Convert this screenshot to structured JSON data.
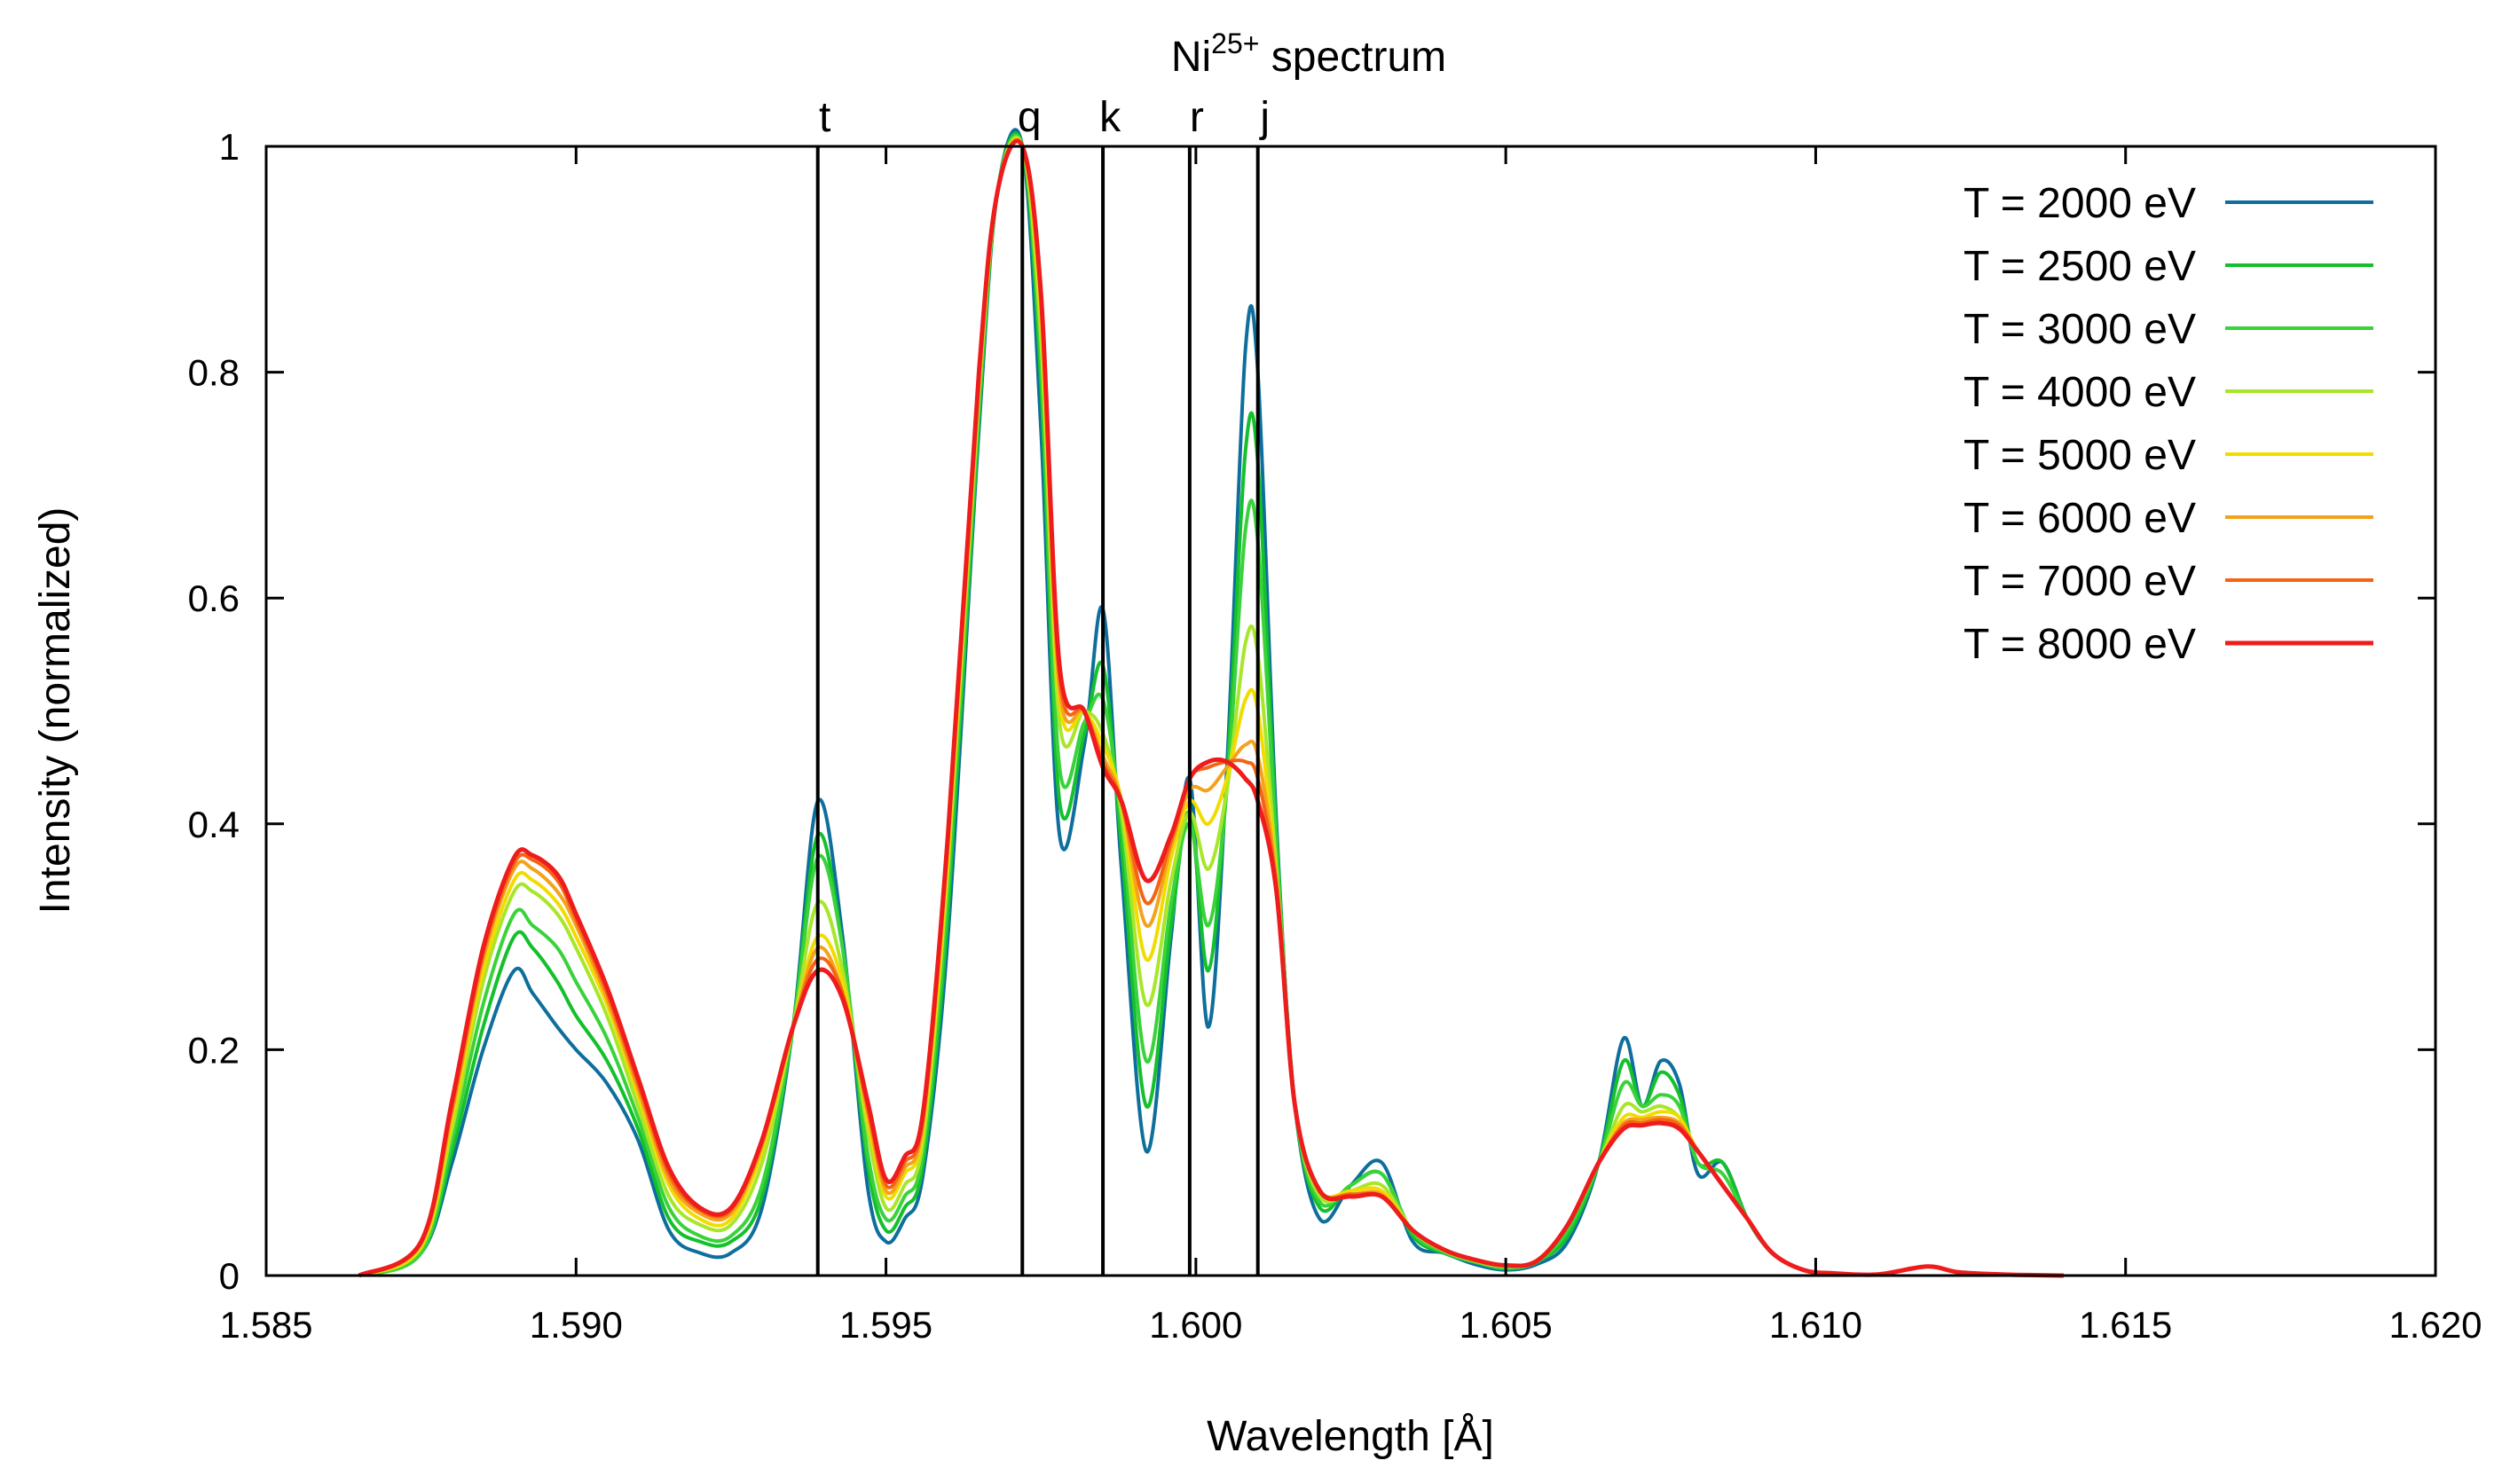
{
  "chart_data": {
    "type": "line",
    "title": "Ni",
    "title_superscript": "25+",
    "title_rest": " spectrum",
    "xlabel": "Wavelength [Å]",
    "ylabel": "Intensity (normalized)",
    "xlim": [
      1.585,
      1.62
    ],
    "ylim": [
      0,
      1
    ],
    "xticks": [
      1.585,
      1.59,
      1.595,
      1.6,
      1.605,
      1.61,
      1.615,
      1.62
    ],
    "xtick_labels": [
      "1.585",
      "1.590",
      "1.595",
      "1.600",
      "1.605",
      "1.610",
      "1.615",
      "1.620"
    ],
    "yticks": [
      0,
      0.2,
      0.4,
      0.6,
      0.8,
      1
    ],
    "ytick_labels": [
      "0",
      "0.2",
      "0.4",
      "0.6",
      "0.8",
      "1"
    ],
    "grid": false,
    "legend_position": "top-right",
    "line_markers": [
      {
        "label": "t",
        "x": 1.5939
      },
      {
        "label": "q",
        "x": 1.5972
      },
      {
        "label": "k",
        "x": 1.5985
      },
      {
        "label": "r",
        "x": 1.5999
      },
      {
        "label": "j",
        "x": 1.601
      }
    ],
    "x": [
      1.5865,
      1.5875,
      1.588,
      1.5885,
      1.589,
      1.5893,
      1.5897,
      1.59,
      1.5905,
      1.591,
      1.5915,
      1.592,
      1.5925,
      1.593,
      1.5935,
      1.5939,
      1.5943,
      1.5947,
      1.595,
      1.5953,
      1.5956,
      1.596,
      1.5965,
      1.5968,
      1.5972,
      1.5975,
      1.5978,
      1.5982,
      1.5985,
      1.5988,
      1.5992,
      1.5996,
      1.5999,
      1.6002,
      1.6005,
      1.6008,
      1.601,
      1.6013,
      1.6016,
      1.602,
      1.6025,
      1.603,
      1.6035,
      1.604,
      1.6045,
      1.605,
      1.6055,
      1.606,
      1.6065,
      1.6069,
      1.6072,
      1.6075,
      1.6078,
      1.6081,
      1.6085,
      1.6089,
      1.6093,
      1.6098,
      1.6103,
      1.611,
      1.6118,
      1.6123,
      1.613,
      1.614
    ],
    "series": [
      {
        "name": "T = 2000 eV",
        "color": "#0e6e9c",
        "values": [
          0.0,
          0.02,
          0.1,
          0.2,
          0.27,
          0.25,
          0.22,
          0.2,
          0.17,
          0.12,
          0.04,
          0.02,
          0.02,
          0.06,
          0.22,
          0.42,
          0.3,
          0.08,
          0.03,
          0.05,
          0.09,
          0.3,
          0.75,
          0.96,
          1.0,
          0.75,
          0.39,
          0.47,
          0.59,
          0.36,
          0.11,
          0.3,
          0.44,
          0.22,
          0.45,
          0.82,
          0.8,
          0.4,
          0.15,
          0.05,
          0.08,
          0.1,
          0.03,
          0.02,
          0.01,
          0.005,
          0.01,
          0.03,
          0.1,
          0.21,
          0.15,
          0.19,
          0.17,
          0.09,
          0.1,
          0.05,
          0.02,
          0.005,
          0.002,
          0.001,
          0.008,
          0.003,
          0.001,
          0.0
        ]
      },
      {
        "name": "T = 2500 eV",
        "color": "#14c02c",
        "values": [
          0.0,
          0.02,
          0.11,
          0.22,
          0.3,
          0.29,
          0.26,
          0.23,
          0.19,
          0.13,
          0.05,
          0.03,
          0.03,
          0.07,
          0.22,
          0.39,
          0.29,
          0.1,
          0.04,
          0.06,
          0.1,
          0.32,
          0.76,
          0.96,
          1.0,
          0.79,
          0.42,
          0.48,
          0.54,
          0.38,
          0.15,
          0.31,
          0.41,
          0.27,
          0.44,
          0.73,
          0.72,
          0.39,
          0.15,
          0.06,
          0.08,
          0.09,
          0.035,
          0.02,
          0.012,
          0.006,
          0.012,
          0.035,
          0.1,
          0.19,
          0.15,
          0.18,
          0.16,
          0.1,
          0.1,
          0.05,
          0.02,
          0.005,
          0.002,
          0.001,
          0.008,
          0.003,
          0.001,
          0.0
        ]
      },
      {
        "name": "T = 3000 eV",
        "color": "#3ad23a",
        "values": [
          0.0,
          0.02,
          0.12,
          0.24,
          0.32,
          0.31,
          0.29,
          0.26,
          0.21,
          0.14,
          0.06,
          0.035,
          0.035,
          0.08,
          0.22,
          0.37,
          0.29,
          0.11,
          0.05,
          0.07,
          0.11,
          0.34,
          0.77,
          0.96,
          1.0,
          0.81,
          0.45,
          0.49,
          0.51,
          0.4,
          0.19,
          0.33,
          0.4,
          0.31,
          0.43,
          0.66,
          0.65,
          0.38,
          0.15,
          0.065,
          0.08,
          0.09,
          0.038,
          0.021,
          0.012,
          0.007,
          0.012,
          0.04,
          0.1,
          0.17,
          0.15,
          0.16,
          0.15,
          0.1,
          0.09,
          0.05,
          0.02,
          0.005,
          0.002,
          0.001,
          0.008,
          0.003,
          0.001,
          0.0
        ]
      },
      {
        "name": "T = 4000 eV",
        "color": "#a8e62a",
        "values": [
          0.0,
          0.025,
          0.13,
          0.26,
          0.34,
          0.34,
          0.32,
          0.29,
          0.23,
          0.15,
          0.07,
          0.045,
          0.045,
          0.1,
          0.22,
          0.33,
          0.27,
          0.13,
          0.06,
          0.08,
          0.12,
          0.36,
          0.78,
          0.96,
          1.0,
          0.83,
          0.49,
          0.5,
          0.48,
          0.41,
          0.24,
          0.35,
          0.41,
          0.36,
          0.43,
          0.56,
          0.55,
          0.36,
          0.15,
          0.07,
          0.075,
          0.08,
          0.04,
          0.022,
          0.013,
          0.008,
          0.013,
          0.045,
          0.1,
          0.15,
          0.145,
          0.15,
          0.14,
          0.11,
          0.08,
          0.05,
          0.02,
          0.005,
          0.002,
          0.001,
          0.008,
          0.003,
          0.001,
          0.0
        ]
      },
      {
        "name": "T = 5000 eV",
        "color": "#f2dc00",
        "values": [
          0.0,
          0.025,
          0.14,
          0.27,
          0.35,
          0.35,
          0.33,
          0.3,
          0.24,
          0.16,
          0.08,
          0.05,
          0.05,
          0.11,
          0.22,
          0.3,
          0.26,
          0.14,
          0.07,
          0.09,
          0.13,
          0.37,
          0.79,
          0.96,
          1.0,
          0.85,
          0.51,
          0.5,
          0.47,
          0.42,
          0.28,
          0.37,
          0.42,
          0.4,
          0.44,
          0.51,
          0.5,
          0.35,
          0.15,
          0.075,
          0.075,
          0.075,
          0.04,
          0.023,
          0.014,
          0.009,
          0.013,
          0.045,
          0.1,
          0.14,
          0.14,
          0.145,
          0.14,
          0.11,
          0.08,
          0.05,
          0.02,
          0.005,
          0.002,
          0.001,
          0.008,
          0.003,
          0.001,
          0.0
        ]
      },
      {
        "name": "T = 6000 eV",
        "color": "#f4a21e",
        "values": [
          0.0,
          0.028,
          0.145,
          0.28,
          0.36,
          0.36,
          0.34,
          0.31,
          0.245,
          0.165,
          0.085,
          0.055,
          0.055,
          0.115,
          0.22,
          0.29,
          0.25,
          0.145,
          0.075,
          0.095,
          0.135,
          0.38,
          0.79,
          0.96,
          1.0,
          0.86,
          0.52,
          0.5,
          0.46,
          0.42,
          0.31,
          0.38,
          0.43,
          0.43,
          0.45,
          0.47,
          0.46,
          0.35,
          0.15,
          0.075,
          0.072,
          0.072,
          0.04,
          0.023,
          0.014,
          0.009,
          0.013,
          0.045,
          0.1,
          0.135,
          0.138,
          0.14,
          0.135,
          0.11,
          0.08,
          0.05,
          0.02,
          0.005,
          0.002,
          0.001,
          0.008,
          0.003,
          0.001,
          0.0
        ]
      },
      {
        "name": "T = 7000 eV",
        "color": "#f46414",
        "values": [
          0.0,
          0.03,
          0.15,
          0.285,
          0.365,
          0.368,
          0.35,
          0.315,
          0.25,
          0.17,
          0.09,
          0.058,
          0.058,
          0.118,
          0.22,
          0.28,
          0.25,
          0.15,
          0.08,
          0.1,
          0.14,
          0.385,
          0.8,
          0.96,
          1.0,
          0.865,
          0.53,
          0.5,
          0.455,
          0.42,
          0.33,
          0.385,
          0.44,
          0.45,
          0.455,
          0.455,
          0.44,
          0.345,
          0.15,
          0.075,
          0.072,
          0.07,
          0.04,
          0.023,
          0.014,
          0.009,
          0.013,
          0.045,
          0.1,
          0.133,
          0.135,
          0.138,
          0.133,
          0.11,
          0.08,
          0.05,
          0.02,
          0.005,
          0.002,
          0.001,
          0.008,
          0.003,
          0.001,
          0.0
        ]
      },
      {
        "name": "T = 8000 eV",
        "color": "#ee1c1c",
        "values": [
          0.0,
          0.03,
          0.155,
          0.29,
          0.37,
          0.372,
          0.355,
          0.32,
          0.255,
          0.175,
          0.095,
          0.06,
          0.06,
          0.12,
          0.22,
          0.27,
          0.245,
          0.155,
          0.085,
          0.105,
          0.145,
          0.39,
          0.8,
          0.96,
          1.0,
          0.87,
          0.54,
          0.5,
          0.45,
          0.42,
          0.35,
          0.39,
          0.44,
          0.455,
          0.455,
          0.44,
          0.42,
          0.34,
          0.15,
          0.075,
          0.07,
          0.07,
          0.04,
          0.023,
          0.014,
          0.009,
          0.013,
          0.045,
          0.1,
          0.13,
          0.133,
          0.135,
          0.13,
          0.11,
          0.08,
          0.05,
          0.02,
          0.005,
          0.002,
          0.001,
          0.008,
          0.003,
          0.001,
          0.0
        ]
      }
    ]
  }
}
